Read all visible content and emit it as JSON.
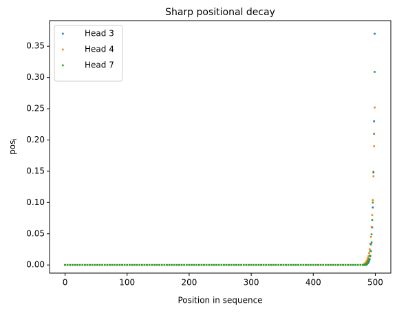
{
  "chart_data": {
    "type": "scatter",
    "title": "Sharp positional decay",
    "x_label": "Position in sequence",
    "y_label": {
      "text": "pos",
      "subscript": "i"
    },
    "xlim": [
      -25,
      525
    ],
    "xticks": [
      0,
      100,
      200,
      300,
      400,
      500
    ],
    "ylim": [
      -0.013,
      0.391
    ],
    "yticks": [
      {
        "value": 0,
        "label": "0.00"
      },
      {
        "value": 0.05,
        "label": "0.05"
      },
      {
        "value": 0.1,
        "label": "0.10"
      },
      {
        "value": 0.15,
        "label": "0.15"
      },
      {
        "value": 0.2,
        "label": "0.20"
      },
      {
        "value": 0.25,
        "label": "0.25"
      },
      {
        "value": 0.3,
        "label": "0.30"
      },
      {
        "value": 0.35,
        "label": "0.35"
      }
    ],
    "legend": "upper left",
    "x": [
      0,
      4,
      8,
      12,
      16,
      20,
      24,
      28,
      32,
      36,
      40,
      44,
      48,
      52,
      56,
      60,
      64,
      68,
      72,
      76,
      80,
      84,
      88,
      92,
      96,
      100,
      104,
      108,
      112,
      116,
      120,
      124,
      128,
      132,
      136,
      140,
      144,
      148,
      152,
      156,
      160,
      164,
      168,
      172,
      176,
      180,
      184,
      188,
      192,
      196,
      200,
      204,
      208,
      212,
      216,
      220,
      224,
      228,
      232,
      236,
      240,
      244,
      248,
      252,
      256,
      260,
      264,
      268,
      272,
      276,
      280,
      284,
      288,
      292,
      296,
      300,
      304,
      308,
      312,
      316,
      320,
      324,
      328,
      332,
      336,
      340,
      344,
      348,
      352,
      356,
      360,
      364,
      368,
      372,
      376,
      380,
      384,
      388,
      392,
      396,
      400,
      404,
      408,
      412,
      416,
      420,
      424,
      428,
      432,
      436,
      440,
      444,
      448,
      452,
      456,
      460,
      464,
      468,
      472,
      476,
      480,
      481,
      482,
      483,
      484,
      485,
      486,
      487,
      488,
      489,
      490,
      491,
      492,
      493,
      494,
      495,
      496,
      497,
      498,
      499
    ],
    "series": [
      {
        "name": "Head 3",
        "color": "#1f77b4",
        "values": [
          0,
          0,
          0,
          0,
          0,
          0,
          0,
          0,
          0,
          0,
          0,
          0,
          0,
          0,
          0,
          0,
          0,
          0,
          0,
          0,
          0,
          0,
          0,
          0,
          0,
          0,
          0,
          0,
          0,
          0,
          0,
          0,
          0,
          0,
          0,
          0,
          0,
          0,
          0,
          0,
          0,
          0,
          0,
          0,
          0,
          0,
          0,
          0,
          0,
          0,
          0,
          0,
          0,
          0,
          0,
          0,
          0,
          0,
          0,
          0,
          0,
          0,
          0,
          0,
          0,
          0,
          0,
          0,
          0,
          0,
          0,
          0,
          0,
          0,
          0,
          0,
          0,
          0,
          0,
          0,
          0,
          0,
          0,
          0,
          0,
          0,
          0,
          0,
          0,
          0,
          0,
          0,
          0,
          0,
          0,
          0,
          0,
          0,
          0,
          0,
          0,
          0,
          0,
          0,
          0,
          0,
          0,
          0,
          0,
          0,
          0,
          0,
          0,
          0,
          0,
          0,
          0,
          0,
          0,
          0,
          0,
          0,
          0,
          0,
          0,
          0,
          0.001,
          0.002,
          0.003,
          0.004,
          0.006,
          0.009,
          0.014,
          0.022,
          0.036,
          0.06,
          0.092,
          0.148,
          0.23,
          0.37
        ]
      },
      {
        "name": "Head 4",
        "color": "#ff7f0e",
        "values": [
          0,
          0,
          0,
          0,
          0,
          0,
          0,
          0,
          0,
          0,
          0,
          0,
          0,
          0,
          0,
          0,
          0,
          0,
          0,
          0,
          0,
          0,
          0,
          0,
          0,
          0,
          0,
          0,
          0,
          0,
          0,
          0,
          0,
          0,
          0,
          0,
          0,
          0,
          0,
          0,
          0,
          0,
          0,
          0,
          0,
          0,
          0,
          0,
          0,
          0,
          0,
          0,
          0,
          0,
          0,
          0,
          0,
          0,
          0,
          0,
          0,
          0,
          0,
          0,
          0,
          0,
          0,
          0,
          0,
          0,
          0,
          0,
          0,
          0,
          0,
          0,
          0,
          0,
          0,
          0,
          0,
          0,
          0,
          0,
          0,
          0,
          0,
          0,
          0,
          0,
          0,
          0,
          0,
          0,
          0,
          0,
          0,
          0,
          0,
          0,
          0,
          0,
          0,
          0,
          0,
          0,
          0,
          0,
          0,
          0,
          0,
          0,
          0,
          0,
          0,
          0,
          0,
          0,
          0,
          0,
          0,
          0.001,
          0.001,
          0.002,
          0.003,
          0.004,
          0.006,
          0.008,
          0.011,
          0.014,
          0.019,
          0.025,
          0.034,
          0.045,
          0.061,
          0.08,
          0.104,
          0.142,
          0.19,
          0.252
        ]
      },
      {
        "name": "Head 7",
        "color": "#2ca02c",
        "values": [
          0,
          0,
          0,
          0,
          0,
          0,
          0,
          0,
          0,
          0,
          0,
          0,
          0,
          0,
          0,
          0,
          0,
          0,
          0,
          0,
          0,
          0,
          0,
          0,
          0,
          0,
          0,
          0,
          0,
          0,
          0,
          0,
          0,
          0,
          0,
          0,
          0,
          0,
          0,
          0,
          0,
          0,
          0,
          0,
          0,
          0,
          0,
          0,
          0,
          0,
          0,
          0,
          0,
          0,
          0,
          0,
          0,
          0,
          0,
          0,
          0,
          0,
          0,
          0,
          0,
          0,
          0,
          0,
          0,
          0,
          0,
          0,
          0,
          0,
          0,
          0,
          0,
          0,
          0,
          0,
          0,
          0,
          0,
          0,
          0,
          0,
          0,
          0,
          0,
          0,
          0,
          0,
          0,
          0,
          0,
          0,
          0,
          0,
          0,
          0,
          0,
          0,
          0,
          0,
          0,
          0,
          0,
          0,
          0,
          0,
          0,
          0,
          0,
          0,
          0,
          0,
          0,
          0,
          0,
          0,
          0,
          0,
          0,
          0,
          0,
          0.001,
          0.002,
          0.003,
          0.005,
          0.007,
          0.01,
          0.015,
          0.022,
          0.033,
          0.049,
          0.072,
          0.1,
          0.149,
          0.21,
          0.309
        ]
      }
    ]
  }
}
